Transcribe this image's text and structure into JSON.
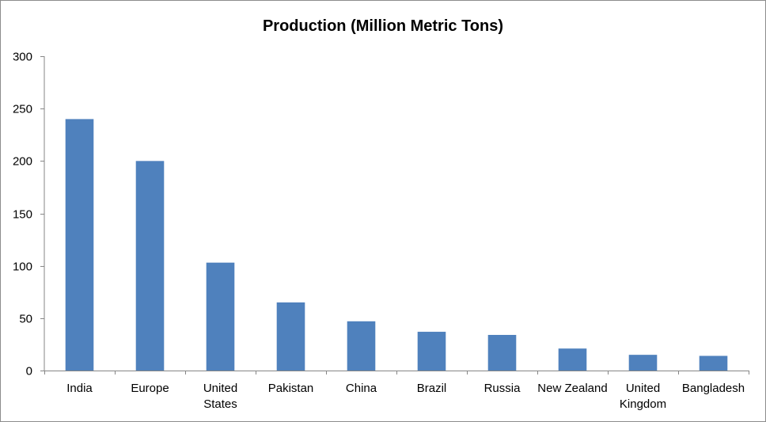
{
  "chart_data": {
    "type": "bar",
    "title": "Production (Million Metric Tons)",
    "xlabel": "",
    "ylabel": "",
    "categories": [
      "India",
      "Europe",
      "United States",
      "Pakistan",
      "China",
      "Brazil",
      "Russia",
      "New Zealand",
      "United Kingdom",
      "Bangladesh"
    ],
    "category_lines": [
      [
        "India"
      ],
      [
        "Europe"
      ],
      [
        "United",
        "States"
      ],
      [
        "Pakistan"
      ],
      [
        "China"
      ],
      [
        "Brazil"
      ],
      [
        "Russia"
      ],
      [
        "New Zealand"
      ],
      [
        "United",
        "Kingdom"
      ],
      [
        "Bangladesh"
      ]
    ],
    "values": [
      240,
      200,
      103,
      65,
      47,
      37,
      34,
      21,
      15,
      14
    ],
    "ylim": [
      0,
      300
    ],
    "yticks": [
      0,
      50,
      100,
      150,
      200,
      250,
      300
    ],
    "grid": false,
    "legend": "none",
    "bar_color": "#4f81bd"
  }
}
